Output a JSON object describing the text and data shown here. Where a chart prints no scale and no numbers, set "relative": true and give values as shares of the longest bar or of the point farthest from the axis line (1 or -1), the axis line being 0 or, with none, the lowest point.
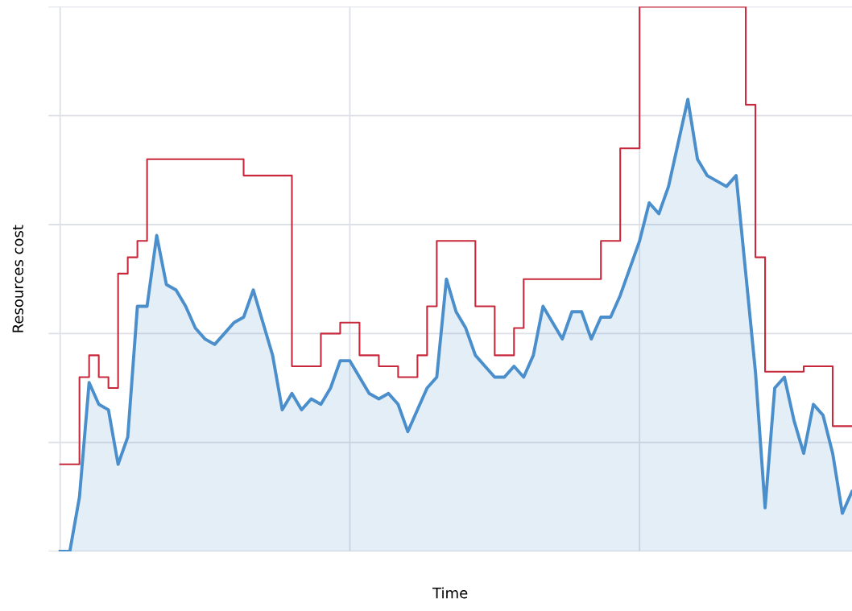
{
  "chart_data": {
    "type": "area",
    "xlabel": "Time",
    "ylabel": "Resources cost",
    "relative": true,
    "grid": true,
    "tick_labels": false,
    "categories": [
      null,
      null,
      null,
      null,
      null,
      null,
      null,
      null,
      null,
      null,
      null,
      null,
      null,
      null,
      null,
      null,
      null,
      null,
      null,
      null,
      null,
      null,
      null,
      null,
      null,
      null,
      null,
      null,
      null,
      null,
      null,
      null,
      null,
      null,
      null,
      null,
      null,
      null,
      null,
      null,
      null,
      null,
      null,
      null,
      null,
      null,
      null,
      null,
      null,
      null,
      null,
      null,
      null,
      null,
      null,
      null,
      null,
      null,
      null,
      null,
      null,
      null,
      null,
      null,
      null,
      null,
      null,
      null,
      null,
      null,
      null,
      null,
      null,
      null,
      null,
      null,
      null,
      null,
      null,
      null,
      null,
      null,
      null
    ],
    "series": [
      {
        "color": "#4a8fcc",
        "values": [
          0,
          0,
          0.1,
          0.31,
          0.27,
          0.26,
          0.16,
          0.21,
          0.45,
          0.45,
          0.58,
          0.49,
          0.48,
          0.45,
          0.41,
          0.39,
          0.38,
          0.4,
          0.42,
          0.43,
          0.48,
          0.42,
          0.36,
          0.26,
          0.29,
          0.26,
          0.28,
          0.27,
          0.3,
          0.35,
          0.35,
          0.32,
          0.29,
          0.28,
          0.29,
          0.27,
          0.22,
          0.26,
          0.3,
          0.32,
          0.5,
          0.44,
          0.41,
          0.36,
          0.34,
          0.32,
          0.32,
          0.34,
          0.32,
          0.36,
          0.45,
          0.42,
          0.39,
          0.44,
          0.44,
          0.39,
          0.43,
          0.43,
          0.47,
          0.52,
          0.57,
          0.64,
          0.62,
          0.67,
          0.75,
          0.83,
          0.72,
          0.69,
          0.68,
          0.67,
          0.69,
          0.51,
          0.33,
          0.08,
          0.3,
          0.32,
          0.24,
          0.18,
          0.27,
          0.25,
          0.18,
          0.07,
          0.11
        ]
      },
      {
        "type": "step",
        "color": "#c8283c",
        "values": [
          0.16,
          0.16,
          0.32,
          0.36,
          0.32,
          0.3,
          0.51,
          0.54,
          0.57,
          0.72,
          0.72,
          0.72,
          0.72,
          0.72,
          0.72,
          0.72,
          0.72,
          0.72,
          0.72,
          0.69,
          0.69,
          0.69,
          0.69,
          0.69,
          0.34,
          0.34,
          0.34,
          0.4,
          0.4,
          0.42,
          0.42,
          0.36,
          0.36,
          0.34,
          0.34,
          0.32,
          0.32,
          0.36,
          0.45,
          0.57,
          0.57,
          0.57,
          0.57,
          0.45,
          0.45,
          0.36,
          0.36,
          0.41,
          0.5,
          0.5,
          0.5,
          0.5,
          0.5,
          0.5,
          0.5,
          0.5,
          0.57,
          0.57,
          0.74,
          0.74,
          1.0,
          1.0,
          1.0,
          1.0,
          1.0,
          1.0,
          1.0,
          1.0,
          1.0,
          1.0,
          1.0,
          0.82,
          0.54,
          0.33,
          0.33,
          0.33,
          0.33,
          0.34,
          0.34,
          0.34,
          0.23,
          0.23,
          0.23
        ]
      }
    ]
  }
}
